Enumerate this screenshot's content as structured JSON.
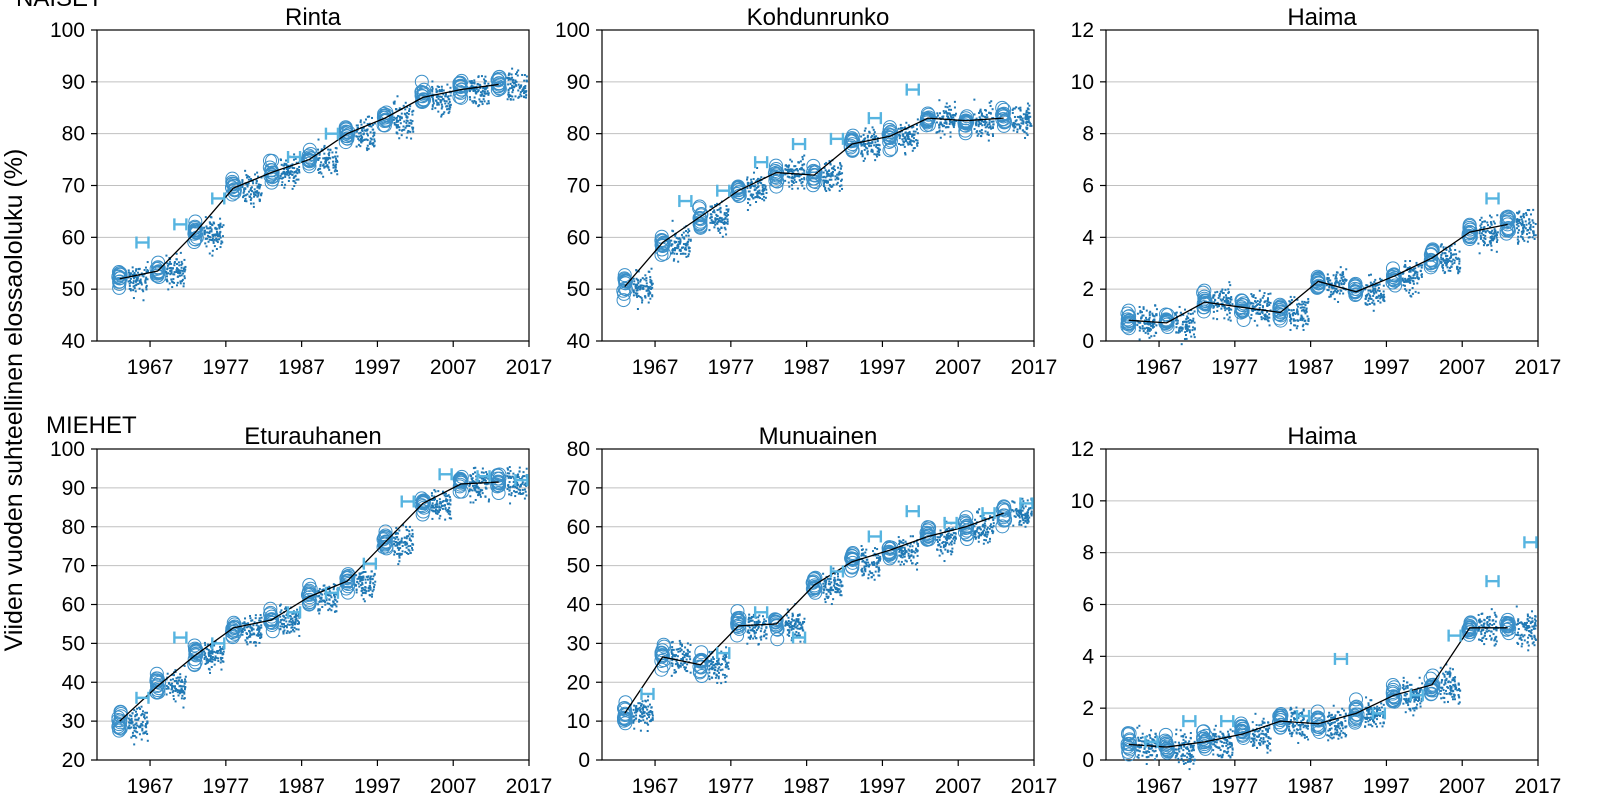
{
  "figure": {
    "ylabel": "Viiden vuoden suhteellinen elossaololuku (%)",
    "groups": [
      "NAISET",
      "MIEHET"
    ],
    "colors": {
      "observed": "#3a8fc8",
      "simulated": "#1f78b4",
      "future": "#56b4e0",
      "line": "#000000",
      "grid": "#c0c0c0"
    }
  },
  "chart_data": [
    {
      "type": "scatter",
      "group": "NAISET",
      "title": "Rinta",
      "xlabel": "",
      "ylabel": "",
      "ylim": [
        40,
        100
      ],
      "yticks": [
        40,
        50,
        60,
        70,
        80,
        90,
        100
      ],
      "xticks": [
        "1967",
        "1977",
        "1987",
        "1997",
        "2007",
        "2017"
      ],
      "xlim": [
        1960,
        2017
      ],
      "grid": "horizontal",
      "series": [
        {
          "role": "trend",
          "x": [
            1963,
            1968,
            1973,
            1978,
            1983,
            1988,
            1993,
            1998,
            2003,
            2008,
            2013
          ],
          "y": [
            52,
            53.5,
            61,
            69.5,
            72.5,
            75,
            80,
            83,
            87,
            88.5,
            89.5
          ]
        },
        {
          "role": "estimate-interval",
          "x": [
            1966,
            1971,
            1976,
            1986,
            1991
          ],
          "y": [
            59,
            62.5,
            67.5,
            75.5,
            80
          ]
        }
      ]
    },
    {
      "type": "scatter",
      "group": "NAISET",
      "title": "Kohdunrunko",
      "xlabel": "",
      "ylabel": "",
      "ylim": [
        40,
        100
      ],
      "yticks": [
        40,
        50,
        60,
        70,
        80,
        90,
        100
      ],
      "xticks": [
        "1967",
        "1977",
        "1987",
        "1997",
        "2007",
        "2017"
      ],
      "xlim": [
        1960,
        2017
      ],
      "grid": "horizontal",
      "series": [
        {
          "role": "trend",
          "x": [
            1963,
            1968,
            1973,
            1978,
            1983,
            1988,
            1993,
            1998,
            2003,
            2008,
            2013
          ],
          "y": [
            50.5,
            59,
            64,
            69,
            72.5,
            72,
            78,
            79.5,
            83,
            82.5,
            83
          ]
        },
        {
          "role": "estimate-interval",
          "x": [
            1971,
            1976,
            1981,
            1986,
            1991,
            1996,
            2001
          ],
          "y": [
            67,
            69,
            74.5,
            78,
            79,
            83,
            88.5
          ]
        }
      ]
    },
    {
      "type": "scatter",
      "group": "NAISET",
      "title": "Haima",
      "xlabel": "",
      "ylabel": "",
      "ylim": [
        0,
        12
      ],
      "yticks": [
        0,
        2,
        4,
        6,
        8,
        10,
        12
      ],
      "xticks": [
        "1967",
        "1977",
        "1987",
        "1997",
        "2007",
        "2017"
      ],
      "xlim": [
        1960,
        2017
      ],
      "grid": "horizontal",
      "series": [
        {
          "role": "trend",
          "x": [
            1963,
            1968,
            1973,
            1978,
            1983,
            1988,
            1993,
            1998,
            2003,
            2008,
            2013
          ],
          "y": [
            0.8,
            0.7,
            1.5,
            1.3,
            1.1,
            2.3,
            1.9,
            2.5,
            3.2,
            4.2,
            4.5
          ]
        },
        {
          "role": "estimate-interval",
          "x": [
            2011
          ],
          "y": [
            5.5
          ]
        }
      ]
    },
    {
      "type": "scatter",
      "group": "MIEHET",
      "title": "Eturauhanen",
      "xlabel": "",
      "ylabel": "",
      "ylim": [
        20,
        100
      ],
      "yticks": [
        20,
        30,
        40,
        50,
        60,
        70,
        80,
        90,
        100
      ],
      "xticks": [
        "1967",
        "1977",
        "1987",
        "1997",
        "2007",
        "2017"
      ],
      "xlim": [
        1960,
        2017
      ],
      "grid": "horizontal",
      "series": [
        {
          "role": "trend",
          "x": [
            1963,
            1968,
            1973,
            1978,
            1983,
            1988,
            1993,
            1998,
            2003,
            2008,
            2013
          ],
          "y": [
            30,
            39,
            47,
            54,
            56,
            62,
            66,
            76,
            86,
            91,
            91.5
          ]
        },
        {
          "role": "estimate-interval",
          "x": [
            1966,
            1971,
            1976,
            1986,
            1991,
            1996,
            2001,
            2006,
            2011,
            2016
          ],
          "y": [
            36,
            51.5,
            50,
            58,
            63,
            70.5,
            86.5,
            93.5,
            93,
            92
          ]
        }
      ]
    },
    {
      "type": "scatter",
      "group": "MIEHET",
      "title": "Munuainen",
      "xlabel": "",
      "ylabel": "",
      "ylim": [
        0,
        80
      ],
      "yticks": [
        0,
        10,
        20,
        30,
        40,
        50,
        60,
        70,
        80
      ],
      "xticks": [
        "1967",
        "1977",
        "1987",
        "1997",
        "2007",
        "2017"
      ],
      "xlim": [
        1960,
        2017
      ],
      "grid": "horizontal",
      "series": [
        {
          "role": "trend",
          "x": [
            1963,
            1968,
            1973,
            1978,
            1983,
            1988,
            1993,
            1998,
            2003,
            2008,
            2013
          ],
          "y": [
            12,
            26.5,
            24.5,
            34.5,
            35,
            45,
            51,
            54,
            57.5,
            60,
            63.5
          ]
        },
        {
          "role": "estimate-interval",
          "x": [
            1966,
            1976,
            1981,
            1986,
            1991,
            1996,
            2001,
            2006,
            2011,
            2016
          ],
          "y": [
            17,
            27.5,
            38,
            31.5,
            48.5,
            57.5,
            64,
            61,
            63.5,
            66
          ]
        }
      ]
    },
    {
      "type": "scatter",
      "group": "MIEHET",
      "title": "Haima",
      "xlabel": "",
      "ylabel": "",
      "ylim": [
        0,
        12
      ],
      "yticks": [
        0,
        2,
        4,
        6,
        8,
        10,
        12
      ],
      "xticks": [
        "1967",
        "1977",
        "1987",
        "1997",
        "2007",
        "2017"
      ],
      "xlim": [
        1960,
        2017
      ],
      "grid": "horizontal",
      "series": [
        {
          "role": "trend",
          "x": [
            1963,
            1968,
            1973,
            1978,
            1983,
            1988,
            1993,
            1998,
            2003,
            2008,
            2013
          ],
          "y": [
            0.6,
            0.5,
            0.7,
            1,
            1.5,
            1.4,
            1.8,
            2.5,
            2.9,
            5.1,
            5.1
          ]
        },
        {
          "role": "estimate-interval",
          "x": [
            1966,
            1971,
            1976,
            1986,
            1991,
            1996,
            2001,
            2006,
            2011,
            2016
          ],
          "y": [
            0.7,
            1.5,
            1.5,
            1.7,
            3.9,
            1.8,
            2.5,
            4.8,
            6.9,
            8.4
          ]
        }
      ]
    }
  ]
}
